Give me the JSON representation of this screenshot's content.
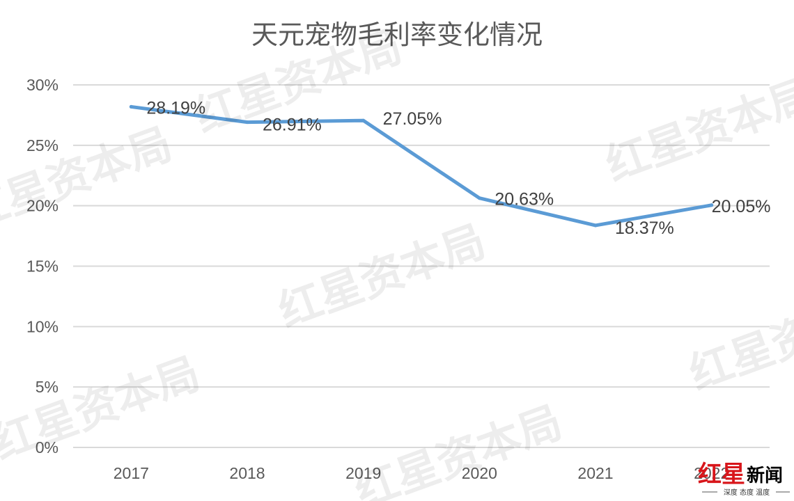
{
  "chart_data": {
    "type": "line",
    "title": "天元宠物毛利率变化情况",
    "xlabel": "",
    "ylabel": "",
    "categories": [
      "2017",
      "2018",
      "2019",
      "2020",
      "2021",
      "2022"
    ],
    "series": [
      {
        "values": [
          28.19,
          26.91,
          27.05,
          20.63,
          18.37,
          20.05
        ],
        "labels": [
          "28.19%",
          "26.91%",
          "27.05%",
          "20.63%",
          "18.37%",
          "20.05%"
        ],
        "color": "#5b9bd5"
      }
    ],
    "ylim": [
      0,
      30
    ],
    "yticks": [
      {
        "value": 0,
        "label": "0%"
      },
      {
        "value": 5,
        "label": "5%"
      },
      {
        "value": 10,
        "label": "10%"
      },
      {
        "value": 15,
        "label": "15%"
      },
      {
        "value": 20,
        "label": "20%"
      },
      {
        "value": 25,
        "label": "25%"
      },
      {
        "value": 30,
        "label": "30%"
      }
    ],
    "grid": true,
    "legend": "none",
    "gridline_color": "#d9d9d9"
  },
  "watermark": "红星资本局",
  "logo": {
    "brand": "红星",
    "news": "新闻",
    "slogan": "深度 态度 温度"
  }
}
